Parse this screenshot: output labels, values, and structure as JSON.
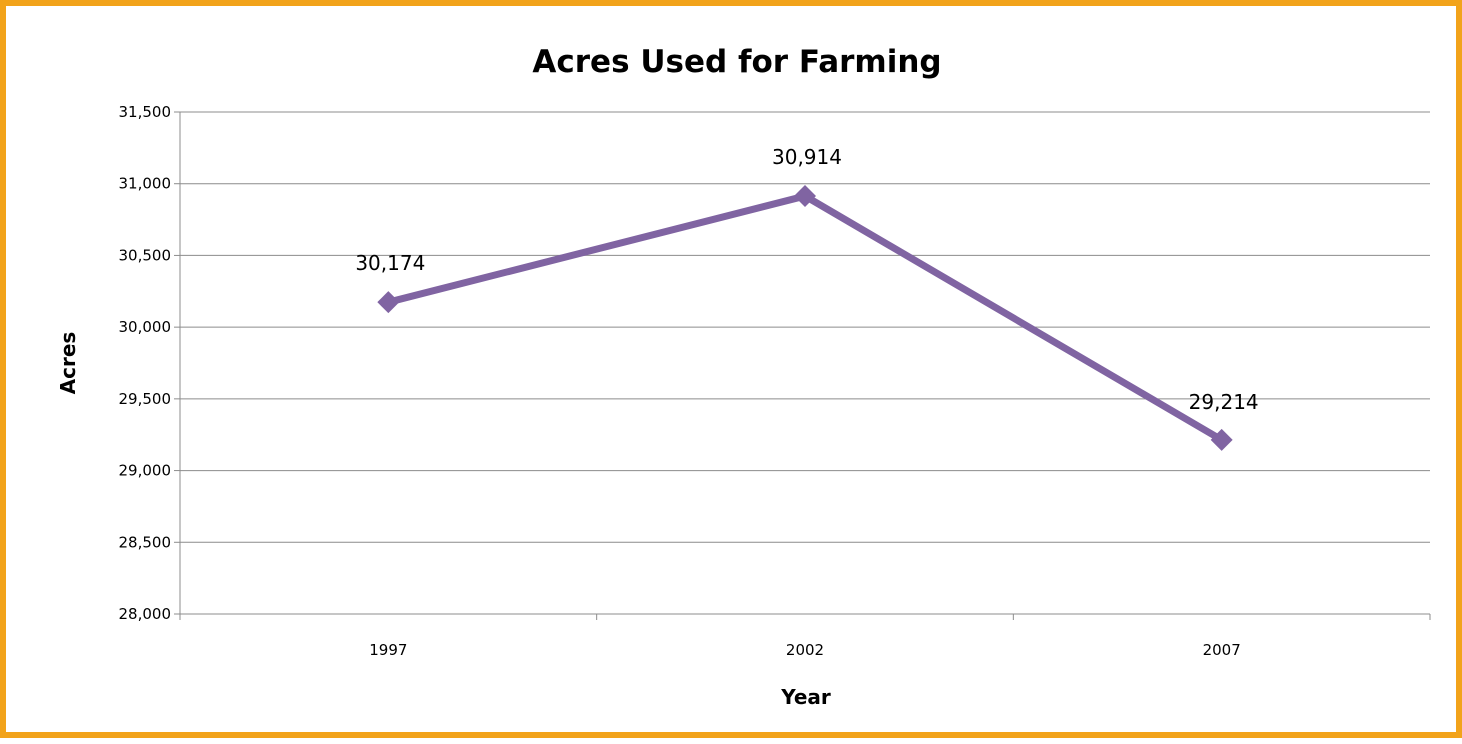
{
  "chart_data": {
    "type": "line",
    "title": "Acres Used for Farming",
    "xlabel": "Year",
    "ylabel": "Acres",
    "categories": [
      "1997",
      "2002",
      "2007"
    ],
    "series": [
      {
        "values": [
          30174,
          30914,
          29214
        ],
        "labels": [
          "30,174",
          "30,914",
          "29,214"
        ],
        "color": "#8064A2",
        "marker": "diamond"
      }
    ],
    "ylim": [
      28000,
      31500
    ],
    "y_ticks": [
      "28,000",
      "28,500",
      "29,000",
      "29,500",
      "30,000",
      "30,500",
      "31,000",
      "31,500"
    ],
    "grid": true,
    "legend": "none",
    "frame_color": "#F2A31A"
  }
}
